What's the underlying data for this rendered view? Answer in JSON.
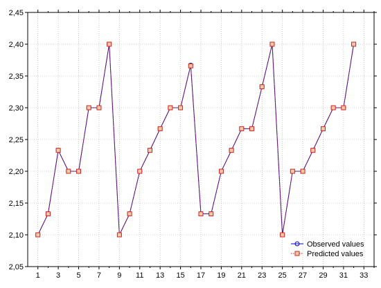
{
  "chart_data": {
    "type": "line",
    "title": "",
    "xlabel": "",
    "ylabel": "",
    "xlim": [
      0,
      34
    ],
    "ylim": [
      2.05,
      2.45
    ],
    "x_ticks": [
      1,
      3,
      5,
      7,
      9,
      11,
      13,
      15,
      17,
      19,
      21,
      23,
      25,
      27,
      29,
      31,
      33
    ],
    "x_tick_labels": [
      "1",
      "3",
      "5",
      "7",
      "9",
      "11",
      "13",
      "15",
      "17",
      "19",
      "21",
      "23",
      "25",
      "27",
      "29",
      "31",
      "33"
    ],
    "y_ticks": [
      2.05,
      2.1,
      2.15,
      2.2,
      2.25,
      2.3,
      2.35,
      2.4,
      2.45
    ],
    "y_tick_labels": [
      "2,05",
      "2,10",
      "2,15",
      "2,20",
      "2,25",
      "2,30",
      "2,35",
      "2,40",
      "2,45"
    ],
    "grid": true,
    "legend_position": "bottom-right",
    "x": [
      1,
      2,
      3,
      4,
      5,
      6,
      7,
      8,
      9,
      10,
      11,
      12,
      13,
      14,
      15,
      16,
      17,
      18,
      19,
      20,
      21,
      22,
      23,
      24,
      25,
      26,
      27,
      28,
      29,
      30,
      31,
      32
    ],
    "series": [
      {
        "name": "Observed values",
        "color": "#0000cc",
        "marker": "circle",
        "line": "solid",
        "values": [
          2.1,
          2.133,
          2.233,
          2.2,
          2.2,
          2.3,
          2.3,
          2.4,
          2.1,
          2.133,
          2.2,
          2.233,
          2.267,
          2.3,
          2.3,
          2.367,
          2.133,
          2.133,
          2.2,
          2.233,
          2.267,
          2.267,
          2.333,
          2.4,
          2.1,
          2.2,
          2.2,
          2.233,
          2.267,
          2.3,
          2.3,
          2.4
        ]
      },
      {
        "name": "Predicted values",
        "color": "#cc2222",
        "marker": "square",
        "line": "dotted",
        "values": [
          2.1,
          2.133,
          2.233,
          2.2,
          2.2,
          2.3,
          2.3,
          2.4,
          2.1,
          2.133,
          2.2,
          2.233,
          2.267,
          2.3,
          2.3,
          2.366,
          2.133,
          2.133,
          2.2,
          2.233,
          2.267,
          2.267,
          2.333,
          2.4,
          2.1,
          2.2,
          2.2,
          2.233,
          2.267,
          2.3,
          2.3,
          2.4
        ]
      }
    ]
  }
}
